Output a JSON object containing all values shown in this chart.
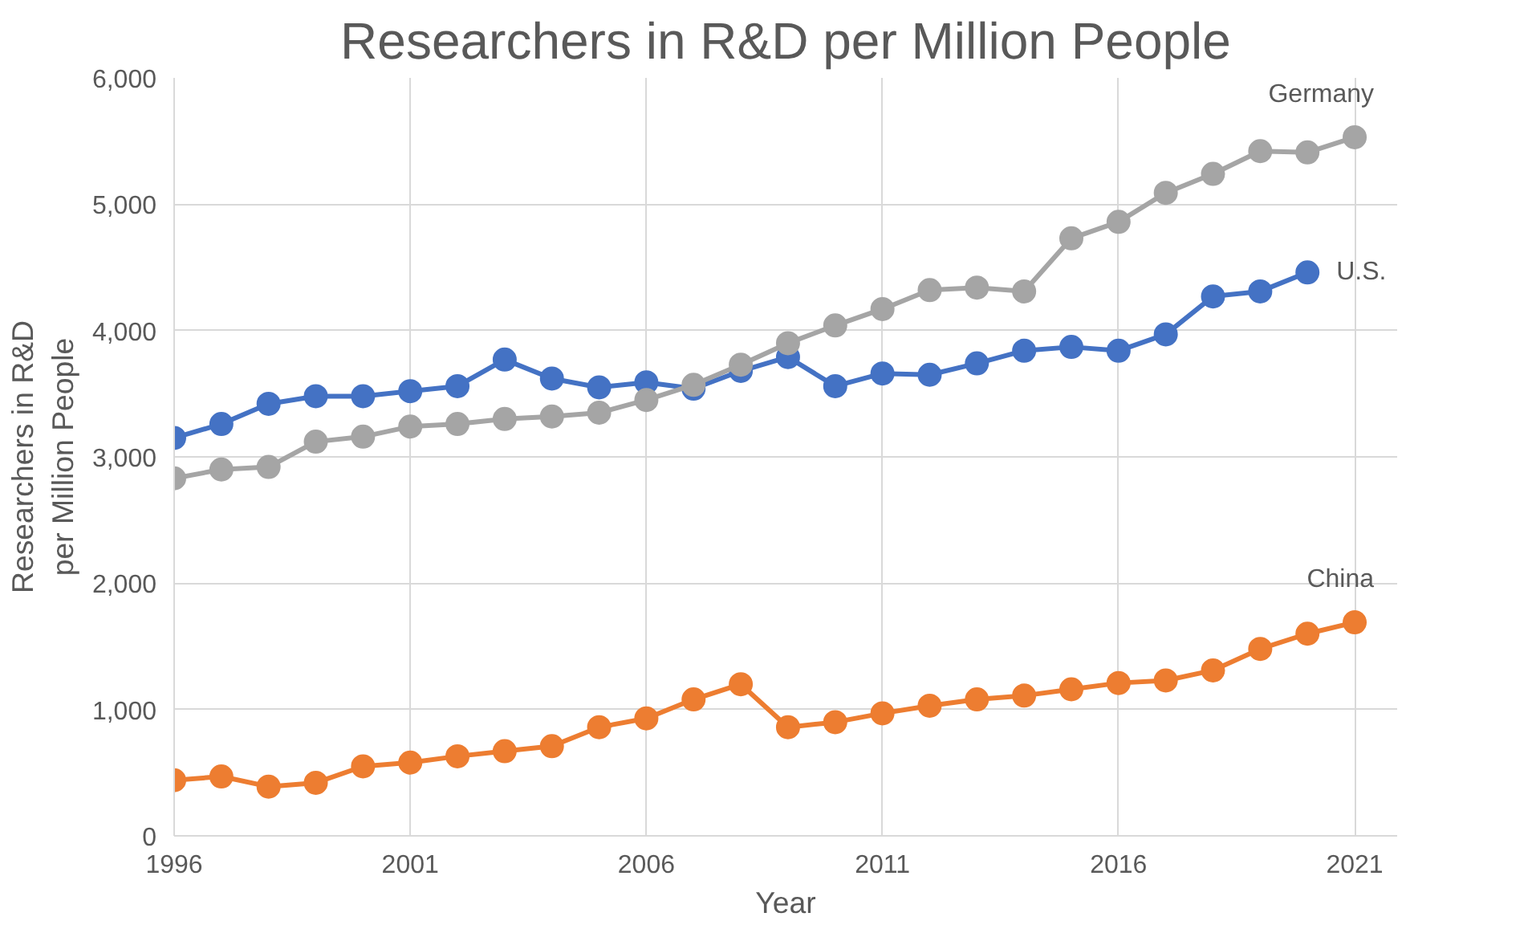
{
  "chart_data": {
    "type": "line",
    "title": "Researchers in R&D per Million People",
    "xlabel": "Year",
    "ylabel": "Researchers in R&D per Million People",
    "x": [
      1996,
      1997,
      1998,
      1999,
      2000,
      2001,
      2002,
      2003,
      2004,
      2005,
      2006,
      2007,
      2008,
      2009,
      2010,
      2011,
      2012,
      2013,
      2014,
      2015,
      2016,
      2017,
      2018,
      2019,
      2020,
      2021
    ],
    "series": [
      {
        "name": "U.S.",
        "color": "#4472c4",
        "values": [
          3150,
          3260,
          3420,
          3480,
          3480,
          3520,
          3560,
          3770,
          3620,
          3550,
          3590,
          3540,
          3680,
          3790,
          3560,
          3660,
          3650,
          3740,
          3840,
          3870,
          3840,
          3970,
          4270,
          4310,
          4460,
          null
        ]
      },
      {
        "name": "Germany",
        "color": "#a5a5a5",
        "values": [
          2830,
          2900,
          2920,
          3120,
          3160,
          3240,
          3260,
          3300,
          3320,
          3350,
          3450,
          3570,
          3730,
          3900,
          4040,
          4170,
          4320,
          4340,
          4310,
          4730,
          4860,
          5090,
          5240,
          5420,
          5410,
          5530
        ]
      },
      {
        "name": "China",
        "color": "#ed7d31",
        "values": [
          440,
          470,
          390,
          420,
          550,
          580,
          630,
          670,
          710,
          860,
          930,
          1080,
          1200,
          860,
          900,
          970,
          1030,
          1080,
          1110,
          1160,
          1210,
          1230,
          1310,
          1480,
          1600,
          1690
        ]
      }
    ],
    "xlim": [
      1996,
      2021.9
    ],
    "xticks": [
      1996,
      2001,
      2006,
      2011,
      2016,
      2021
    ],
    "ylim": [
      0,
      6000
    ],
    "yticks": [
      0,
      {
        "value": 1000,
        "label": "1,000"
      },
      {
        "value": 2000,
        "label": "2,000"
      },
      {
        "value": 3000,
        "label": "3,000"
      },
      {
        "value": 4000,
        "label": "4,000"
      },
      {
        "value": 5000,
        "label": "5,000"
      },
      {
        "value": 6000,
        "label": "6,000"
      }
    ],
    "grid": true,
    "marker": "circle",
    "line_style": "solid"
  }
}
